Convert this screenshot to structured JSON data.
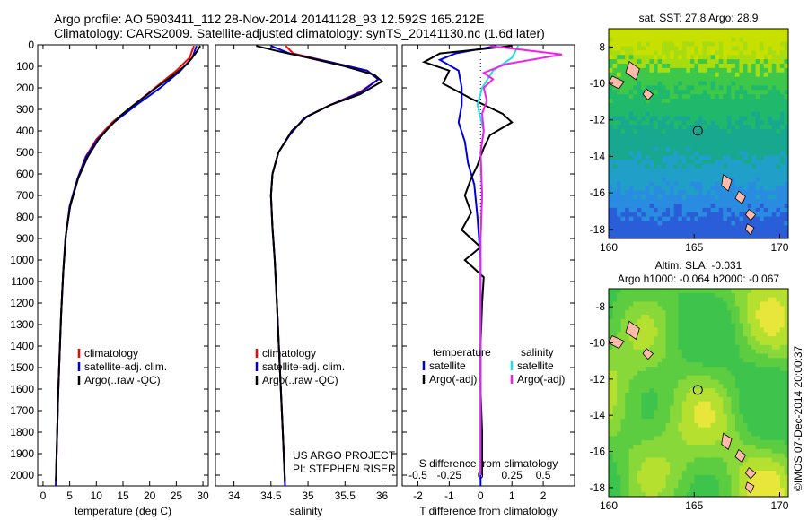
{
  "header": {
    "title_line1": "Argo profile: AO 5903411_112 28-Nov-2014 20141128_93 12.592S 165.212E",
    "title_line2": "Climatology: CARS2009. Satellite-adjusted climatology: synTS_20141130.nc (1.6d later)"
  },
  "colors": {
    "climatology": "#ff0000",
    "satellite": "#0000dd",
    "argo": "#000000",
    "satellite_sal": "#22dddd",
    "argo_sal": "#ee22ee",
    "land": "#ffbbaa"
  },
  "chart_data": [
    {
      "type": "line",
      "name": "temperature-profile",
      "xlabel": "temperature (deg C)",
      "ylabel": "",
      "xlim": [
        -1,
        31
      ],
      "ylim": [
        2050,
        0
      ],
      "xticks": [
        0,
        5,
        10,
        15,
        20,
        25,
        30
      ],
      "yticks": [
        0,
        100,
        200,
        300,
        400,
        500,
        600,
        700,
        800,
        900,
        1000,
        1100,
        1200,
        1300,
        1400,
        1500,
        1600,
        1700,
        1800,
        1900,
        2000
      ],
      "legend": [
        "climatology",
        "satellite-adj. clim.",
        "Argo(..raw -QC)"
      ],
      "series": [
        {
          "name": "climatology",
          "color": "#ff0000",
          "points": [
            [
              28.3,
              5
            ],
            [
              27.5,
              60
            ],
            [
              25,
              120
            ],
            [
              21,
              200
            ],
            [
              17,
              280
            ],
            [
              13,
              360
            ],
            [
              10,
              440
            ],
            [
              8,
              520
            ],
            [
              6.5,
              620
            ],
            [
              5,
              750
            ],
            [
              4.2,
              900
            ],
            [
              3.8,
              1050
            ],
            [
              3.4,
              1250
            ],
            [
              3.1,
              1450
            ],
            [
              2.8,
              1650
            ],
            [
              2.6,
              1850
            ],
            [
              2.4,
              2050
            ]
          ]
        },
        {
          "name": "satellite-adj. clim.",
          "color": "#0000dd",
          "points": [
            [
              28.8,
              5
            ],
            [
              28,
              60
            ],
            [
              25.8,
              120
            ],
            [
              22,
              200
            ],
            [
              17.5,
              280
            ],
            [
              13.3,
              360
            ],
            [
              10.2,
              440
            ],
            [
              8.1,
              520
            ],
            [
              6.5,
              620
            ],
            [
              5,
              750
            ],
            [
              4.2,
              900
            ],
            [
              3.8,
              1050
            ],
            [
              3.4,
              1250
            ],
            [
              3.1,
              1450
            ],
            [
              2.8,
              1650
            ],
            [
              2.6,
              1850
            ],
            [
              2.4,
              2050
            ]
          ]
        },
        {
          "name": "Argo(..raw -QC)",
          "color": "#000000",
          "points": [
            [
              29.5,
              5
            ],
            [
              28.6,
              40
            ],
            [
              27,
              90
            ],
            [
              24.5,
              140
            ],
            [
              21.2,
              200
            ],
            [
              17,
              280
            ],
            [
              14.5,
              330
            ],
            [
              12.5,
              380
            ],
            [
              10.4,
              440
            ],
            [
              8.4,
              520
            ],
            [
              6.6,
              620
            ],
            [
              5.1,
              750
            ],
            [
              4.3,
              880
            ],
            [
              3.8,
              1050
            ],
            [
              3.4,
              1250
            ],
            [
              3.1,
              1450
            ],
            [
              2.8,
              1650
            ],
            [
              2.6,
              1850
            ],
            [
              2.4,
              2030
            ]
          ]
        }
      ]
    },
    {
      "type": "line",
      "name": "salinity-profile",
      "xlabel": "salinity",
      "ylabel": "",
      "xlim": [
        33.75,
        36.2
      ],
      "ylim": [
        2050,
        0
      ],
      "xticks": [
        34,
        34.5,
        35,
        35.5,
        36
      ],
      "legend": [
        "climatology",
        "satellite-adj. clim.",
        "Argo(..raw -QC)"
      ],
      "annotation": [
        "US ARGO PROJECT",
        "PI: STEPHEN RISER"
      ],
      "series": [
        {
          "name": "climatology",
          "color": "#ff0000",
          "points": [
            [
              34.7,
              5
            ],
            [
              34.8,
              40
            ],
            [
              35.3,
              80
            ],
            [
              35.8,
              120
            ],
            [
              35.95,
              160
            ],
            [
              35.7,
              220
            ],
            [
              35.3,
              280
            ],
            [
              34.95,
              340
            ],
            [
              34.75,
              420
            ],
            [
              34.6,
              500
            ],
            [
              34.52,
              600
            ],
            [
              34.5,
              700
            ],
            [
              34.52,
              850
            ],
            [
              34.55,
              1000
            ],
            [
              34.58,
              1200
            ],
            [
              34.62,
              1500
            ],
            [
              34.66,
              1800
            ],
            [
              34.69,
              2050
            ]
          ]
        },
        {
          "name": "satellite-adj. clim.",
          "color": "#0000dd",
          "points": [
            [
              34.5,
              5
            ],
            [
              34.75,
              40
            ],
            [
              35.3,
              80
            ],
            [
              35.8,
              120
            ],
            [
              35.95,
              160
            ],
            [
              35.72,
              220
            ],
            [
              35.3,
              280
            ],
            [
              34.95,
              340
            ],
            [
              34.75,
              420
            ],
            [
              34.6,
              500
            ],
            [
              34.52,
              600
            ],
            [
              34.5,
              700
            ],
            [
              34.52,
              850
            ],
            [
              34.55,
              1000
            ],
            [
              34.58,
              1200
            ],
            [
              34.62,
              1500
            ],
            [
              34.66,
              1800
            ],
            [
              34.69,
              2050
            ]
          ]
        },
        {
          "name": "Argo(..raw -QC)",
          "color": "#000000",
          "points": [
            [
              34.3,
              5
            ],
            [
              34.6,
              30
            ],
            [
              35.0,
              60
            ],
            [
              35.5,
              100
            ],
            [
              35.9,
              140
            ],
            [
              36.0,
              170
            ],
            [
              35.7,
              230
            ],
            [
              35.3,
              280
            ],
            [
              35.0,
              330
            ],
            [
              34.78,
              400
            ],
            [
              34.6,
              500
            ],
            [
              34.52,
              600
            ],
            [
              34.5,
              700
            ],
            [
              34.52,
              850
            ],
            [
              34.55,
              1000
            ],
            [
              34.58,
              1200
            ],
            [
              34.62,
              1500
            ],
            [
              34.66,
              1800
            ],
            [
              34.69,
              2030
            ]
          ]
        }
      ]
    },
    {
      "type": "line",
      "name": "difference-profile",
      "xlabel": "T difference from climatology",
      "x2label": "S difference from climatology",
      "xlim": [
        -2.5,
        3
      ],
      "xticks": [
        -2,
        -1,
        0,
        1,
        2
      ],
      "x2ticks_labels": [
        "-0.5",
        "-0.25",
        "0",
        "0.25",
        "0.5"
      ],
      "x2ticks_pos": [
        -2,
        -1,
        0,
        1,
        2
      ],
      "ylim": [
        2050,
        0
      ],
      "legend_groups": [
        {
          "title": "temperature",
          "items": [
            "satellite",
            "Argo(-adj)"
          ]
        },
        {
          "title": "salinity",
          "items": [
            "satellite",
            "Argo(-adj)"
          ]
        }
      ],
      "series": [
        {
          "name": "temperature satellite",
          "color": "#0000dd",
          "points": [
            [
              0.5,
              5
            ],
            [
              -0.8,
              40
            ],
            [
              -1.3,
              70
            ],
            [
              -0.7,
              120
            ],
            [
              -0.6,
              200
            ],
            [
              -0.6,
              280
            ],
            [
              -0.7,
              360
            ],
            [
              -0.5,
              450
            ],
            [
              -0.4,
              550
            ],
            [
              -0.2,
              650
            ],
            [
              -0.1,
              800
            ],
            [
              0,
              1000
            ],
            [
              0,
              2050
            ]
          ]
        },
        {
          "name": "temperature Argo(-adj)",
          "color": "#000000",
          "points": [
            [
              1,
              5
            ],
            [
              -1.3,
              40
            ],
            [
              -1.8,
              80
            ],
            [
              -1.0,
              120
            ],
            [
              -1.2,
              180
            ],
            [
              -0.3,
              250
            ],
            [
              0.7,
              320
            ],
            [
              1.0,
              360
            ],
            [
              0.3,
              420
            ],
            [
              0.1,
              480
            ],
            [
              -0.1,
              560
            ],
            [
              -0.3,
              620
            ],
            [
              -0.5,
              700
            ],
            [
              -0.3,
              780
            ],
            [
              -0.6,
              860
            ],
            [
              0,
              940
            ],
            [
              -0.5,
              1000
            ],
            [
              0.1,
              1080
            ],
            [
              0.05,
              1200
            ],
            [
              0,
              1400
            ],
            [
              0,
              1600
            ],
            [
              0.05,
              1800
            ],
            [
              0.05,
              2000
            ]
          ]
        },
        {
          "name": "salinity satellite",
          "color": "#22dddd",
          "points": [
            [
              1.2,
              5
            ],
            [
              1.0,
              60
            ],
            [
              0.4,
              120
            ],
            [
              0.05,
              200
            ],
            [
              -0.1,
              280
            ],
            [
              0.1,
              400
            ],
            [
              0,
              500
            ],
            [
              0.05,
              700
            ],
            [
              0,
              900
            ],
            [
              0,
              1200
            ],
            [
              0,
              1600
            ],
            [
              0,
              2000
            ]
          ]
        },
        {
          "name": "salinity Argo(-adj)",
          "color": "#ee22ee",
          "points": [
            [
              0.3,
              5
            ],
            [
              2.6,
              45
            ],
            [
              0.8,
              90
            ],
            [
              0.1,
              130
            ],
            [
              0.4,
              160
            ],
            [
              0.1,
              200
            ],
            [
              0.2,
              260
            ],
            [
              0.05,
              320
            ],
            [
              0.1,
              400
            ],
            [
              0,
              500
            ],
            [
              0.05,
              700
            ],
            [
              0,
              900
            ],
            [
              0,
              1200
            ],
            [
              0,
              1600
            ],
            [
              0,
              2000
            ]
          ]
        }
      ]
    },
    {
      "type": "heatmap",
      "name": "sst-map",
      "title": "sat. SST: 27.8 Argo: 28.9",
      "xlim": [
        160,
        170.5
      ],
      "ylim": [
        -18.5,
        -7.0
      ],
      "xticks": [
        160,
        165,
        170
      ],
      "yticks": [
        -8,
        -10,
        -12,
        -14,
        -16,
        -18
      ],
      "argo_position": [
        165.212,
        -12.592
      ]
    },
    {
      "type": "heatmap",
      "name": "sla-map",
      "title": "Altim. SLA: -0.031",
      "subtitle": "Argo h1000: -0.064 h2000: -0.067",
      "xlim": [
        160,
        170.5
      ],
      "ylim": [
        -18.5,
        -7.0
      ],
      "xticks": [
        160,
        165,
        170
      ],
      "yticks": [
        -8,
        -10,
        -12,
        -14,
        -16,
        -18
      ],
      "argo_position": [
        165.212,
        -12.592
      ]
    }
  ],
  "credit": "©IMOS 07-Dec-2014 20:00:37"
}
